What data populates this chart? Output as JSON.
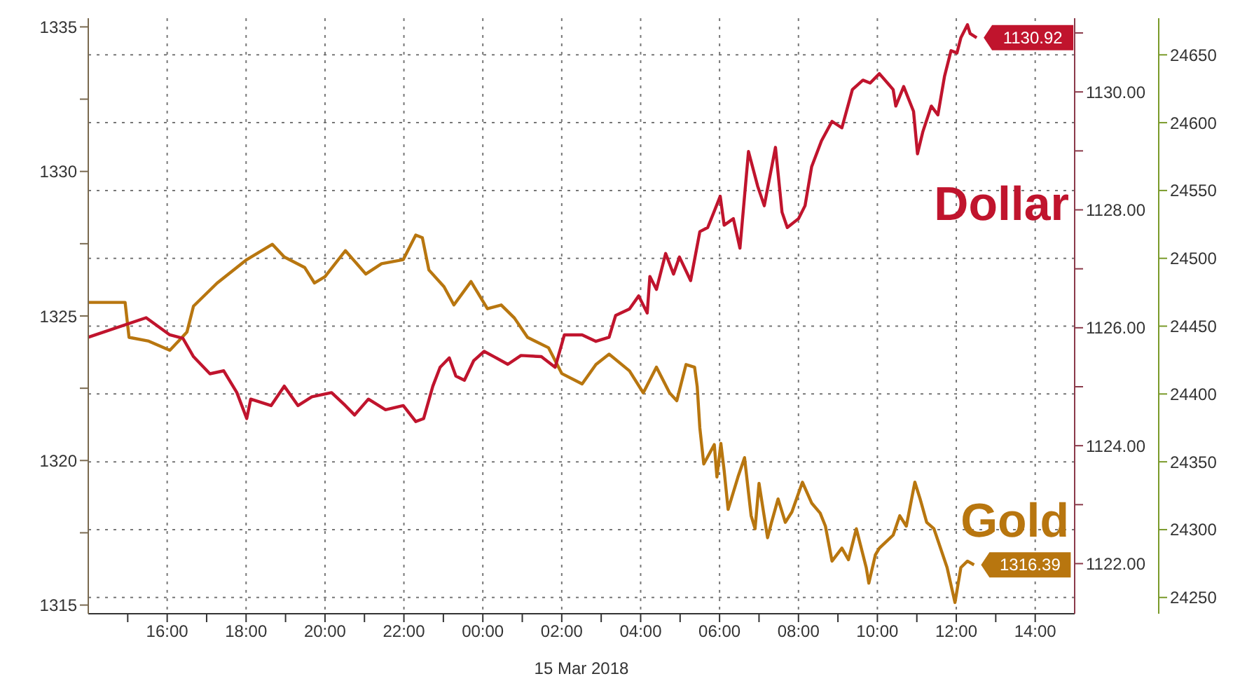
{
  "chart_data": {
    "type": "line",
    "xlabel": "15 Mar 2018",
    "xlim": [
      "2018-03-14T14:00",
      "2018-03-15T15:00"
    ],
    "xticks": [
      {
        "value": "2018-03-14T15:00",
        "label": null
      },
      {
        "value": "2018-03-14T16:00",
        "label": "16:00"
      },
      {
        "value": "2018-03-14T17:00",
        "label": null
      },
      {
        "value": "2018-03-14T18:00",
        "label": "18:00"
      },
      {
        "value": "2018-03-14T19:00",
        "label": null
      },
      {
        "value": "2018-03-14T20:00",
        "label": "20:00"
      },
      {
        "value": "2018-03-14T21:00",
        "label": null
      },
      {
        "value": "2018-03-14T22:00",
        "label": "22:00"
      },
      {
        "value": "2018-03-14T23:00",
        "label": null
      },
      {
        "value": "2018-03-15T00:00",
        "label": "00:00"
      },
      {
        "value": "2018-03-15T01:00",
        "label": null
      },
      {
        "value": "2018-03-15T02:00",
        "label": "02:00"
      },
      {
        "value": "2018-03-15T03:00",
        "label": null
      },
      {
        "value": "2018-03-15T04:00",
        "label": "04:00"
      },
      {
        "value": "2018-03-15T05:00",
        "label": null
      },
      {
        "value": "2018-03-15T06:00",
        "label": "06:00"
      },
      {
        "value": "2018-03-15T07:00",
        "label": null
      },
      {
        "value": "2018-03-15T08:00",
        "label": "08:00"
      },
      {
        "value": "2018-03-15T09:00",
        "label": null
      },
      {
        "value": "2018-03-15T10:00",
        "label": "10:00"
      },
      {
        "value": "2018-03-15T11:00",
        "label": null
      },
      {
        "value": "2018-03-15T12:00",
        "label": "12:00"
      },
      {
        "value": "2018-03-15T13:00",
        "label": null
      },
      {
        "value": "2018-03-15T14:00",
        "label": "14:00"
      }
    ],
    "ylim": [
      1314.7,
      1335.3
    ],
    "yticks": [
      1315,
      {
        "value": 1317.5,
        "label": null
      },
      1320,
      {
        "value": 1322.5,
        "label": null
      },
      1325,
      {
        "value": 1327.5,
        "label": null
      },
      1330,
      {
        "value": 1332.5,
        "label": null
      },
      1335
    ],
    "y2lim": [
      1121.15,
      1131.25
    ],
    "y2ticks": [
      {
        "value": 1122,
        "label": "1122.00"
      },
      {
        "value": 1123,
        "label": null
      },
      {
        "value": 1124,
        "label": "1124.00"
      },
      {
        "value": 1125,
        "label": null
      },
      {
        "value": 1126,
        "label": "1126.00"
      },
      {
        "value": 1127,
        "label": null
      },
      {
        "value": 1128,
        "label": "1128.00"
      },
      {
        "value": 1129,
        "label": null
      },
      {
        "value": 1130,
        "label": "1130.00"
      },
      {
        "value": 1131,
        "label": null
      }
    ],
    "y3lim": [
      24238,
      24677
    ],
    "y3ticks": [
      24250,
      24300,
      24350,
      24400,
      24450,
      24500,
      24550,
      24600,
      24650
    ],
    "grid": true,
    "marker": "none",
    "line_style": "solid",
    "series": [
      {
        "name": "Gold",
        "color": "#b8760f",
        "axis": "y",
        "x": [
          "2018-03-14T14:00",
          "2018-03-14T14:56",
          "2018-03-14T15:02",
          "2018-03-14T15:32",
          "2018-03-14T16:04",
          "2018-03-14T16:30",
          "2018-03-14T16:40",
          "2018-03-14T17:16",
          "2018-03-14T18:01",
          "2018-03-14T18:40",
          "2018-03-14T18:58",
          "2018-03-14T19:29",
          "2018-03-14T19:44",
          "2018-03-14T20:00",
          "2018-03-14T20:31",
          "2018-03-14T21:02",
          "2018-03-14T21:26",
          "2018-03-14T21:59",
          "2018-03-14T22:18",
          "2018-03-14T22:28",
          "2018-03-14T22:38",
          "2018-03-14T23:01",
          "2018-03-14T23:16",
          "2018-03-14T23:42",
          "2018-03-15T00:07",
          "2018-03-15T00:28",
          "2018-03-15T00:48",
          "2018-03-15T01:08",
          "2018-03-15T01:40",
          "2018-03-15T02:00",
          "2018-03-15T02:31",
          "2018-03-15T02:52",
          "2018-03-15T03:12",
          "2018-03-15T03:43",
          "2018-03-15T04:04",
          "2018-03-15T04:24",
          "2018-03-15T04:44",
          "2018-03-15T04:55",
          "2018-03-15T05:09",
          "2018-03-15T05:22",
          "2018-03-15T05:26",
          "2018-03-15T05:30",
          "2018-03-15T05:36",
          "2018-03-15T05:52",
          "2018-03-15T05:56",
          "2018-03-15T06:02",
          "2018-03-15T06:07",
          "2018-03-15T06:13",
          "2018-03-15T06:28",
          "2018-03-15T06:38",
          "2018-03-15T06:48",
          "2018-03-15T06:54",
          "2018-03-15T07:00",
          "2018-03-15T07:13",
          "2018-03-15T07:19",
          "2018-03-15T07:29",
          "2018-03-15T07:40",
          "2018-03-15T07:50",
          "2018-03-15T08:06",
          "2018-03-15T08:20",
          "2018-03-15T08:33",
          "2018-03-15T08:41",
          "2018-03-15T08:51",
          "2018-03-15T09:06",
          "2018-03-15T09:16",
          "2018-03-15T09:28",
          "2018-03-15T09:43",
          "2018-03-15T09:47",
          "2018-03-15T09:57",
          "2018-03-15T10:03",
          "2018-03-15T10:24",
          "2018-03-15T10:34",
          "2018-03-15T10:44",
          "2018-03-15T10:57",
          "2018-03-15T11:05",
          "2018-03-15T11:15",
          "2018-03-15T11:26",
          "2018-03-15T11:46",
          "2018-03-15T11:58",
          "2018-03-15T12:07",
          "2018-03-15T12:17",
          "2018-03-15T12:27"
        ],
        "values": [
          1325.47,
          1325.47,
          1324.26,
          1324.13,
          1323.81,
          1324.44,
          1325.34,
          1326.14,
          1326.95,
          1327.48,
          1327.04,
          1326.68,
          1326.14,
          1326.36,
          1327.26,
          1326.45,
          1326.81,
          1326.95,
          1327.8,
          1327.71,
          1326.59,
          1326.01,
          1325.38,
          1326.19,
          1325.25,
          1325.38,
          1324.93,
          1324.26,
          1323.9,
          1323.01,
          1322.65,
          1323.32,
          1323.68,
          1323.1,
          1322.34,
          1323.23,
          1322.34,
          1322.07,
          1323.32,
          1323.23,
          1322.56,
          1321.13,
          1319.88,
          1320.55,
          1319.43,
          1320.59,
          1319.65,
          1318.31,
          1319.43,
          1320.1,
          1318.09,
          1317.64,
          1319.21,
          1317.33,
          1317.86,
          1318.67,
          1317.86,
          1318.22,
          1319.25,
          1318.53,
          1318.18,
          1317.73,
          1316.52,
          1316.97,
          1316.57,
          1317.64,
          1316.3,
          1315.76,
          1316.74,
          1316.97,
          1317.42,
          1318.09,
          1317.73,
          1319.25,
          1318.67,
          1317.86,
          1317.64,
          1316.3,
          1315.09,
          1316.3,
          1316.52,
          1316.39
        ],
        "value_labels": [
          null,
          null,
          null,
          null,
          null,
          null,
          null,
          null,
          null,
          null,
          null,
          null,
          null,
          null,
          null,
          null,
          null,
          null,
          null,
          null,
          null,
          null,
          null,
          null,
          null,
          null,
          null,
          null,
          null,
          null,
          null,
          null,
          null,
          null,
          null,
          null,
          null,
          null,
          null,
          null,
          null,
          null,
          null,
          null,
          null,
          null,
          null,
          null,
          null,
          null,
          null,
          null,
          null,
          null,
          null,
          null,
          null,
          null,
          null,
          null,
          null,
          null,
          null,
          null,
          null,
          null,
          null,
          null,
          null,
          null,
          null,
          null,
          null,
          null,
          null,
          null,
          null,
          null,
          null,
          null,
          null,
          "1316.39"
        ]
      },
      {
        "name": "Dollar",
        "color": "#c0142d",
        "axis": "y2",
        "x": [
          "2018-03-14T14:00",
          "2018-03-14T15:28",
          "2018-03-14T16:04",
          "2018-03-14T16:24",
          "2018-03-14T16:40",
          "2018-03-14T17:05",
          "2018-03-14T17:26",
          "2018-03-14T17:46",
          "2018-03-14T18:01",
          "2018-03-14T18:07",
          "2018-03-14T18:38",
          "2018-03-14T18:58",
          "2018-03-14T19:19",
          "2018-03-14T19:40",
          "2018-03-14T20:10",
          "2018-03-14T20:31",
          "2018-03-14T20:45",
          "2018-03-14T21:06",
          "2018-03-14T21:32",
          "2018-03-14T21:59",
          "2018-03-14T22:18",
          "2018-03-14T22:30",
          "2018-03-14T22:44",
          "2018-03-14T22:55",
          "2018-03-14T23:09",
          "2018-03-14T23:19",
          "2018-03-14T23:32",
          "2018-03-14T23:46",
          "2018-03-15T00:02",
          "2018-03-15T00:17",
          "2018-03-15T00:38",
          "2018-03-15T00:58",
          "2018-03-15T01:29",
          "2018-03-15T01:50",
          "2018-03-15T02:04",
          "2018-03-15T02:31",
          "2018-03-15T02:52",
          "2018-03-15T03:12",
          "2018-03-15T03:22",
          "2018-03-15T03:43",
          "2018-03-15T03:57",
          "2018-03-15T04:10",
          "2018-03-15T04:14",
          "2018-03-15T04:24",
          "2018-03-15T04:38",
          "2018-03-15T04:50",
          "2018-03-15T04:59",
          "2018-03-15T05:16",
          "2018-03-15T05:30",
          "2018-03-15T05:42",
          "2018-03-15T06:01",
          "2018-03-15T06:07",
          "2018-03-15T06:21",
          "2018-03-15T06:31",
          "2018-03-15T06:44",
          "2018-03-15T06:58",
          "2018-03-15T07:08",
          "2018-03-15T07:25",
          "2018-03-15T07:35",
          "2018-03-15T07:43",
          "2018-03-15T08:00",
          "2018-03-15T08:10",
          "2018-03-15T08:20",
          "2018-03-15T08:35",
          "2018-03-15T08:51",
          "2018-03-15T09:06",
          "2018-03-15T09:22",
          "2018-03-15T09:38",
          "2018-03-15T09:49",
          "2018-03-15T10:03",
          "2018-03-15T10:24",
          "2018-03-15T10:28",
          "2018-03-15T10:40",
          "2018-03-15T10:55",
          "2018-03-15T11:01",
          "2018-03-15T11:09",
          "2018-03-15T11:22",
          "2018-03-15T11:32",
          "2018-03-15T11:42",
          "2018-03-15T11:52",
          "2018-03-15T12:01",
          "2018-03-15T12:07",
          "2018-03-15T12:17",
          "2018-03-15T12:21",
          "2018-03-15T12:31"
        ],
        "values": [
          1125.84,
          1126.17,
          1125.88,
          1125.82,
          1125.51,
          1125.22,
          1125.27,
          1124.9,
          1124.46,
          1124.79,
          1124.68,
          1125.01,
          1124.68,
          1124.83,
          1124.9,
          1124.68,
          1124.52,
          1124.79,
          1124.61,
          1124.68,
          1124.41,
          1124.46,
          1125.01,
          1125.33,
          1125.49,
          1125.18,
          1125.11,
          1125.44,
          1125.6,
          1125.51,
          1125.38,
          1125.53,
          1125.51,
          1125.33,
          1125.88,
          1125.88,
          1125.77,
          1125.84,
          1126.21,
          1126.32,
          1126.54,
          1126.25,
          1126.87,
          1126.65,
          1127.26,
          1126.91,
          1127.2,
          1126.8,
          1127.63,
          1127.7,
          1128.23,
          1127.74,
          1127.85,
          1127.35,
          1128.99,
          1128.4,
          1128.07,
          1129.06,
          1127.96,
          1127.7,
          1127.85,
          1128.07,
          1128.73,
          1129.17,
          1129.5,
          1129.39,
          1130.04,
          1130.2,
          1130.15,
          1130.31,
          1130.04,
          1129.76,
          1130.09,
          1129.67,
          1128.95,
          1129.32,
          1129.76,
          1129.61,
          1130.26,
          1130.7,
          1130.66,
          1130.92,
          1131.14,
          1130.99,
          1130.92
        ],
        "value_labels": [
          null,
          null,
          null,
          null,
          null,
          null,
          null,
          null,
          null,
          null,
          null,
          null,
          null,
          null,
          null,
          null,
          null,
          null,
          null,
          null,
          null,
          null,
          null,
          null,
          null,
          null,
          null,
          null,
          null,
          null,
          null,
          null,
          null,
          null,
          null,
          null,
          null,
          null,
          null,
          null,
          null,
          null,
          null,
          null,
          null,
          null,
          null,
          null,
          null,
          null,
          null,
          null,
          null,
          null,
          null,
          null,
          null,
          null,
          null,
          null,
          null,
          null,
          null,
          null,
          null,
          null,
          null,
          null,
          null,
          null,
          null,
          null,
          null,
          null,
          null,
          null,
          null,
          null,
          null,
          null,
          null,
          null,
          null,
          null,
          "1130.92"
        ]
      }
    ]
  }
}
